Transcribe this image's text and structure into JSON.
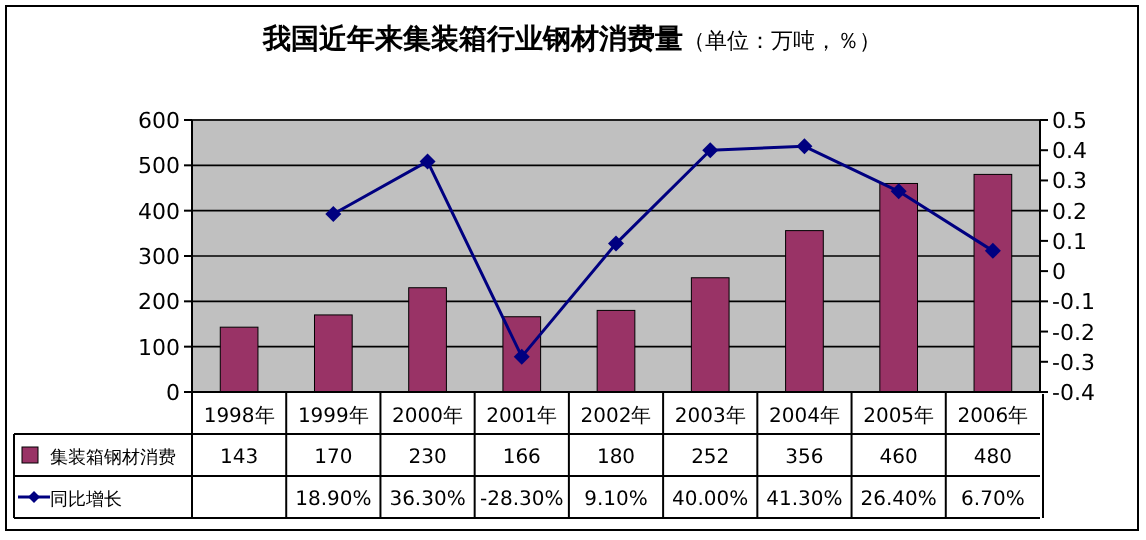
{
  "chart_data": {
    "type": "bar",
    "title": "我国近年来集装箱行业钢材消费量",
    "subtitle": "（单位：万吨，％）",
    "categories": [
      "1998年",
      "1999年",
      "2000年",
      "2001年",
      "2002年",
      "2003年",
      "2004年",
      "2005年",
      "2006年"
    ],
    "series": [
      {
        "name": "集装箱钢材消费",
        "color": "#993366",
        "values": [
          143,
          170,
          230,
          166,
          180,
          252,
          356,
          460,
          480
        ]
      },
      {
        "name": "同比增长",
        "type": "line",
        "axis": "y2",
        "color": "#000080",
        "marker": "diamond",
        "values": [
          null,
          0.189,
          0.363,
          -0.283,
          0.091,
          0.4,
          0.413,
          0.264,
          0.067
        ],
        "value_labels": [
          null,
          "18.90%",
          "36.30%",
          "-28.30%",
          "9.10%",
          "40.00%",
          "41.30%",
          "26.40%",
          "6.70%"
        ]
      }
    ],
    "data_labels": true,
    "ylim": [
      0,
      600
    ],
    "yticks": [
      0,
      100,
      200,
      300,
      400,
      500,
      600
    ],
    "y2lim": [
      -0.4,
      0.5
    ],
    "y2ticks": [
      -0.4,
      -0.3,
      -0.2,
      -0.1,
      0,
      0.1,
      0.2,
      0.3,
      0.4,
      0.5
    ],
    "grid": "y",
    "legend": "bottom"
  }
}
